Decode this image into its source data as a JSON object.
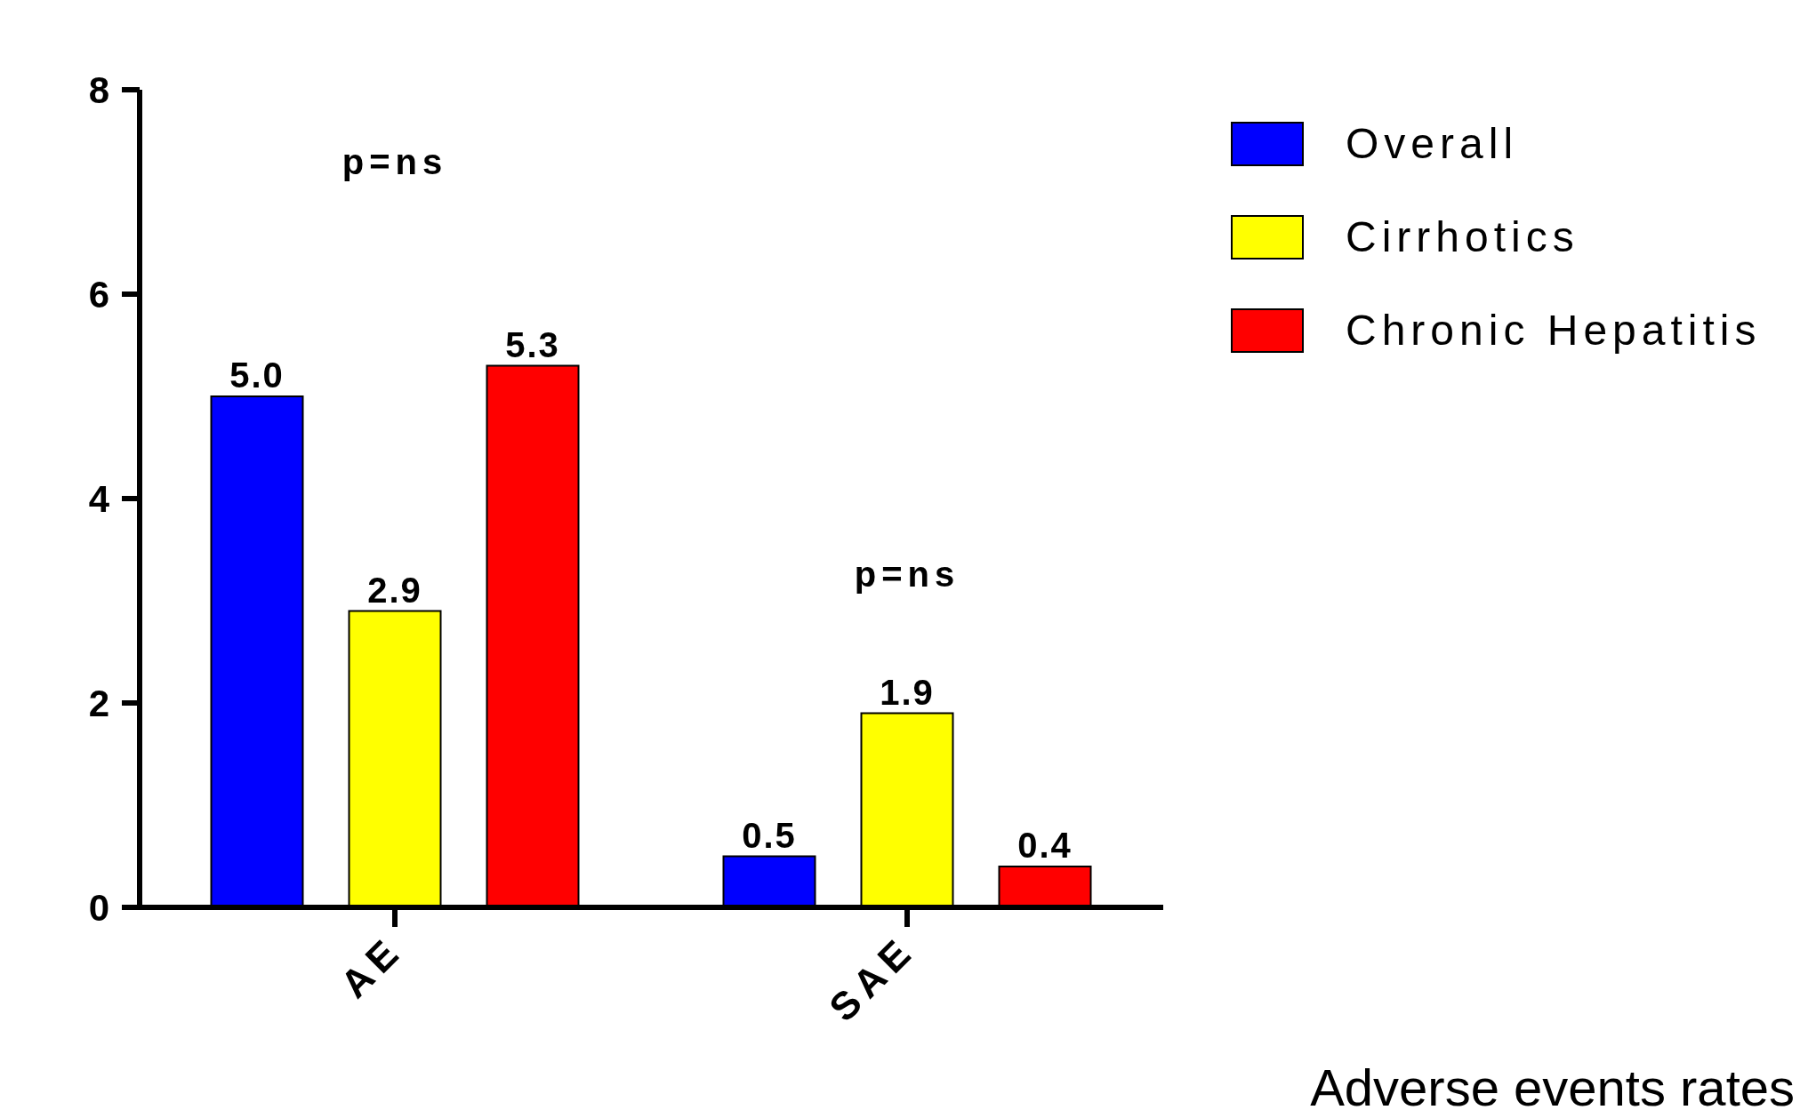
{
  "chart_data": {
    "type": "bar",
    "categories": [
      "AE",
      "SAE"
    ],
    "series": [
      {
        "name": "Overall",
        "color": "#0000ff",
        "values": [
          5.0,
          0.5
        ],
        "value_labels": [
          "5.0",
          "0.5"
        ]
      },
      {
        "name": "Cirrhotics",
        "color": "#ffff00",
        "values": [
          2.9,
          1.9
        ],
        "value_labels": [
          "2.9",
          "1.9"
        ]
      },
      {
        "name": "Chronic Hepatitis",
        "color": "#ff0000",
        "values": [
          5.3,
          0.4
        ],
        "value_labels": [
          "5.3",
          "0.4"
        ]
      }
    ],
    "ylim": [
      0,
      8
    ],
    "yticks": [
      0,
      2,
      4,
      6,
      8
    ],
    "grid": false,
    "legend": "top right",
    "annotations": [
      "p=ns",
      "p=ns",
      "Adverse events rates"
    ]
  }
}
